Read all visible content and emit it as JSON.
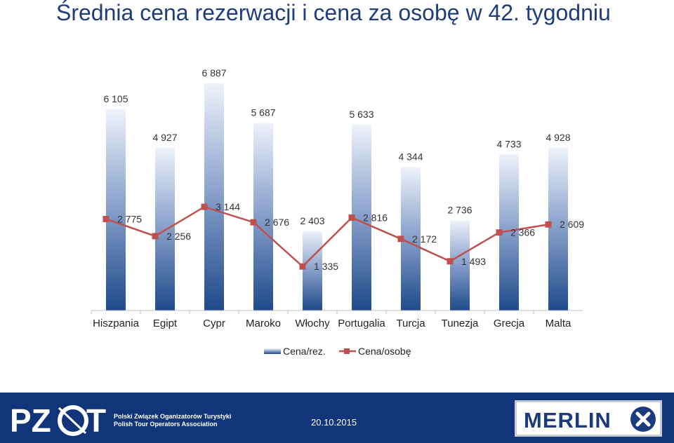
{
  "title": "Średnia cena rezerwacji i cena za osobę w 42. tygodniu",
  "chart_data": {
    "type": "bar",
    "categories": [
      "Hiszpania",
      "Egipt",
      "Cypr",
      "Maroko",
      "Włochy",
      "Portugalia",
      "Turcja",
      "Tunezja",
      "Grecja",
      "Malta"
    ],
    "series": [
      {
        "name": "Cena/rez.",
        "type": "bar",
        "values": [
          6105,
          4927,
          6887,
          5687,
          2403,
          5633,
          4344,
          2736,
          4733,
          4928
        ],
        "labels": [
          "6 105",
          "4 927",
          "6 887",
          "5 687",
          "2 403",
          "5 633",
          "4 344",
          "2 736",
          "4 733",
          "4 928"
        ]
      },
      {
        "name": "Cena/osobę",
        "type": "line",
        "values": [
          2775,
          2256,
          3144,
          2676,
          1335,
          2816,
          2172,
          1493,
          2366,
          2609
        ],
        "labels": [
          "2 775",
          "2 256",
          "3 144",
          "2 676",
          "1 335",
          "2 816",
          "2 172",
          "1 493",
          "2 366",
          "2 609"
        ]
      }
    ],
    "ylim": [
      0,
      7600
    ],
    "xlabel": "",
    "ylabel": "",
    "grid": false,
    "legend": "bottom",
    "colors": {
      "bar_top": "#eef2fa",
      "bar_bottom": "#1f4a8a",
      "line": "#c0504d",
      "axis": "#bfbfbf"
    }
  },
  "footer": {
    "org_line1": "Polski Związek Oganizatorów Turystyki",
    "org_line2": "Polish Tour Operators Association",
    "date": "20.10.2015",
    "logo_left": "PZOT",
    "logo_right": "MERLIN"
  }
}
